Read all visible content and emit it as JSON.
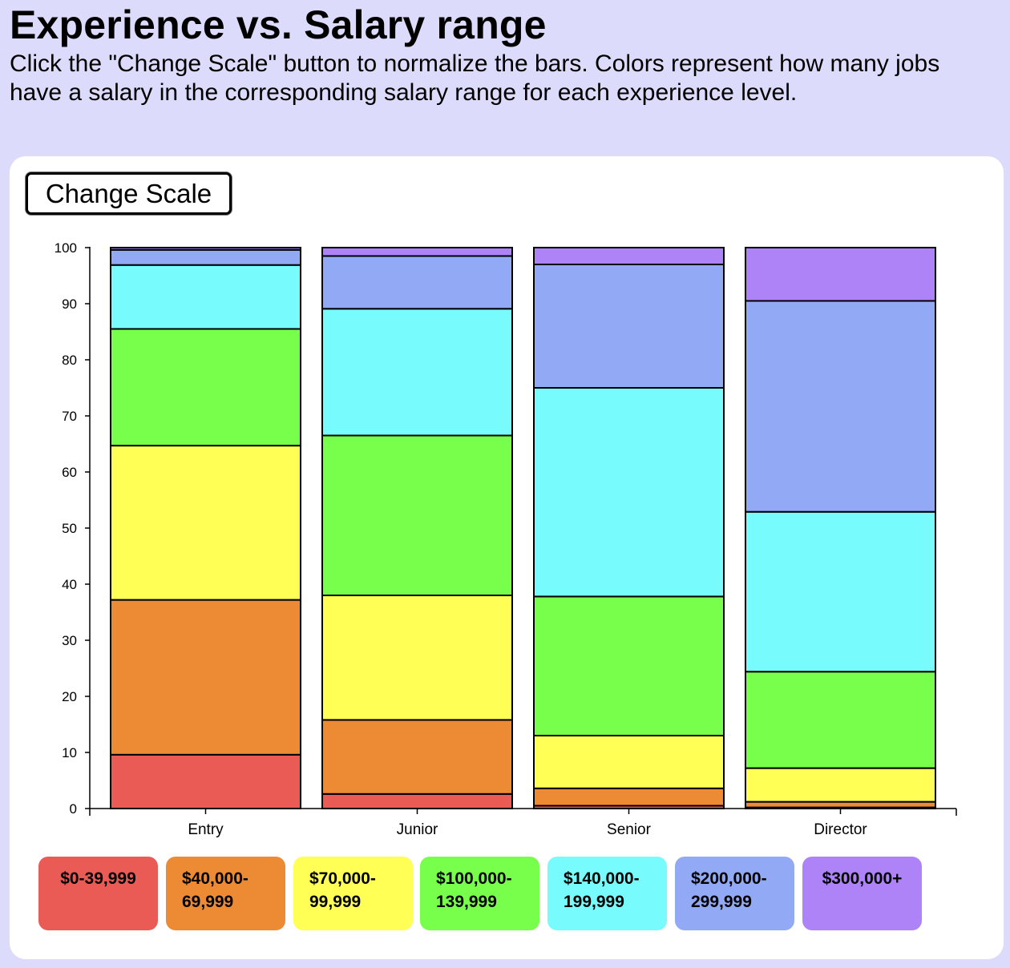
{
  "header": {
    "title": "Experience vs. Salary range",
    "subtitle": "Click the \"Change Scale\" button to normalize the bars. Colors represent how many jobs have a salary in the corresponding salary range for each experience level."
  },
  "controls": {
    "change_scale_label": "Change Scale"
  },
  "legend": [
    {
      "label": "$0-39,999",
      "color": "#ea5b56"
    },
    {
      "label": "$40,000-\n69,999",
      "color": "#ed8b35"
    },
    {
      "label": "$70,000-\n99,999",
      "color": "#ffff55"
    },
    {
      "label": "$100,000-\n139,999",
      "color": "#78ff4c"
    },
    {
      "label": "$140,000-\n199,999",
      "color": "#78fbfd"
    },
    {
      "label": "$200,000-\n299,999",
      "color": "#92aaf5"
    },
    {
      "label": "$300,000+",
      "color": "#ae83f7"
    }
  ],
  "chart_data": {
    "type": "bar",
    "stacked": true,
    "title": "",
    "xlabel": "",
    "ylabel": "",
    "ylim": [
      0,
      100
    ],
    "y_ticks": [
      0,
      10,
      20,
      30,
      40,
      50,
      60,
      70,
      80,
      90,
      100
    ],
    "categories": [
      "Entry",
      "Junior",
      "Senior",
      "Director"
    ],
    "series": [
      {
        "name": "$0-39,999",
        "color": "#ea5b56",
        "values": [
          9.6,
          2.6,
          0.5,
          0.2
        ]
      },
      {
        "name": "$40,000-69,999",
        "color": "#ed8b35",
        "values": [
          27.6,
          13.2,
          3.1,
          1.0
        ]
      },
      {
        "name": "$70,000-99,999",
        "color": "#ffff55",
        "values": [
          27.5,
          22.2,
          9.4,
          6.0
        ]
      },
      {
        "name": "$100,000-139,999",
        "color": "#78ff4c",
        "values": [
          20.8,
          28.5,
          24.8,
          17.2
        ]
      },
      {
        "name": "$140,000-199,999",
        "color": "#78fbfd",
        "values": [
          11.4,
          22.6,
          37.2,
          28.5
        ]
      },
      {
        "name": "$200,000-299,999",
        "color": "#92aaf5",
        "values": [
          2.7,
          9.4,
          22.0,
          37.6
        ]
      },
      {
        "name": "$300,000+",
        "color": "#ae83f7",
        "values": [
          0.4,
          1.5,
          3.0,
          9.5
        ]
      }
    ],
    "grid": false,
    "legend_position": "bottom"
  }
}
